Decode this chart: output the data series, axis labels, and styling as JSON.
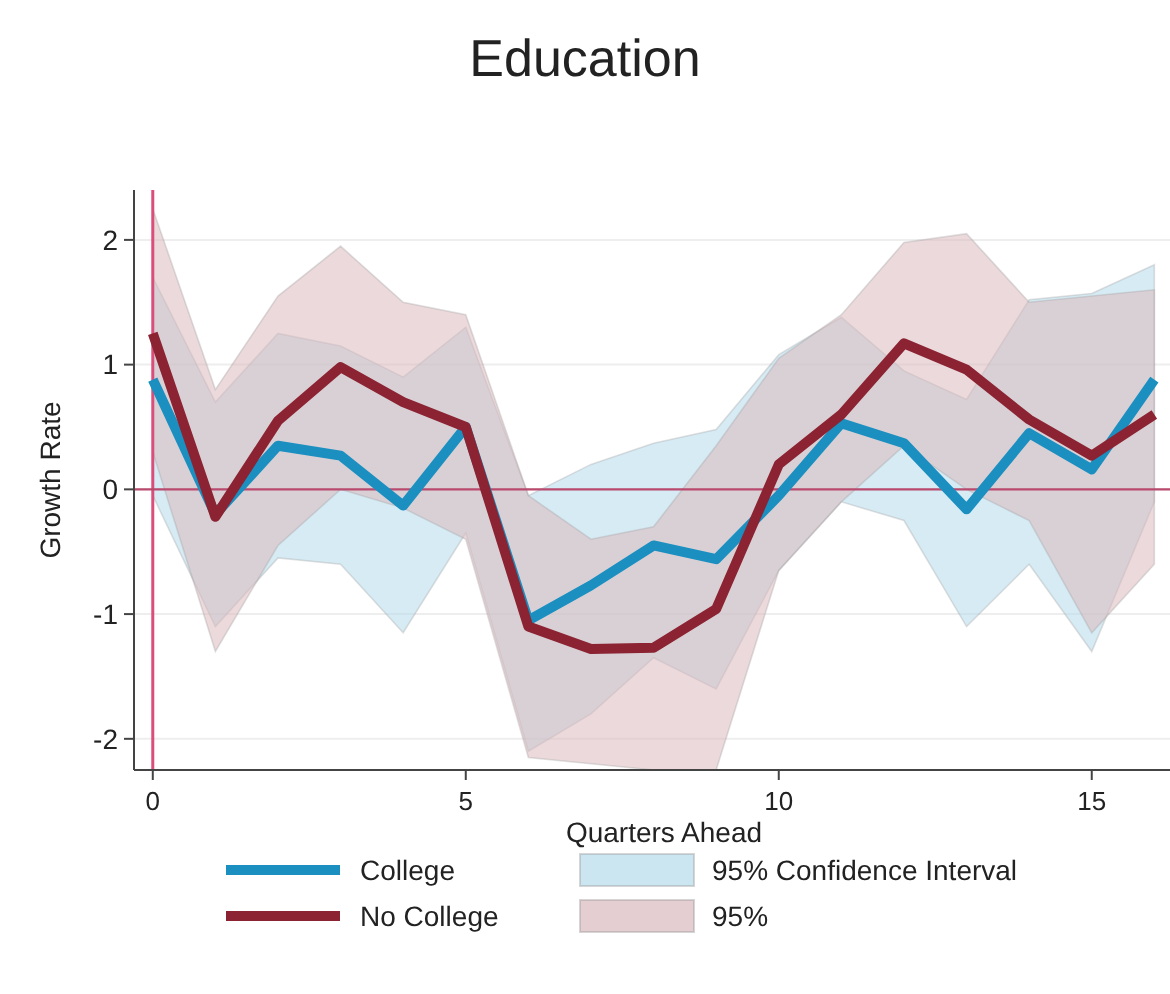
{
  "chart_data": {
    "type": "line",
    "title": "Education",
    "xlabel": "Quarters Ahead",
    "ylabel": "Growth Rate",
    "x": [
      0,
      1,
      2,
      3,
      4,
      5,
      6,
      7,
      8,
      9,
      10,
      11,
      12,
      13,
      14,
      15,
      16
    ],
    "series": [
      {
        "name": "College",
        "color": "#1a8fc0",
        "values": [
          0.88,
          -0.2,
          0.35,
          0.27,
          -0.13,
          0.5,
          -1.05,
          -0.77,
          -0.45,
          -0.56,
          -0.05,
          0.53,
          0.37,
          -0.16,
          0.45,
          0.16,
          0.88
        ],
        "lower": [
          -0.05,
          -1.1,
          -0.55,
          -0.6,
          -1.15,
          -0.35,
          -2.1,
          -1.8,
          -1.35,
          -1.6,
          -0.65,
          -0.1,
          -0.25,
          -1.1,
          -0.6,
          -1.3,
          -0.1
        ],
        "upper": [
          1.7,
          0.7,
          1.25,
          1.15,
          0.9,
          1.3,
          -0.05,
          0.2,
          0.37,
          0.48,
          1.08,
          1.38,
          0.95,
          0.72,
          1.52,
          1.57,
          1.8
        ]
      },
      {
        "name": "No College",
        "color": "#8b2332",
        "values": [
          1.25,
          -0.22,
          0.55,
          0.98,
          0.7,
          0.5,
          -1.1,
          -1.28,
          -1.27,
          -0.96,
          0.2,
          0.6,
          1.17,
          0.96,
          0.56,
          0.27,
          0.6
        ],
        "lower": [
          0.3,
          -1.3,
          -0.45,
          0.0,
          -0.15,
          -0.4,
          -2.15,
          -2.2,
          -2.25,
          -2.25,
          -0.65,
          -0.1,
          0.35,
          0.0,
          -0.25,
          -1.15,
          -0.6
        ],
        "upper": [
          2.25,
          0.8,
          1.55,
          1.95,
          1.5,
          1.4,
          -0.05,
          -0.4,
          -0.3,
          0.35,
          1.05,
          1.4,
          1.98,
          2.05,
          1.5,
          1.55,
          1.6
        ]
      }
    ],
    "annotations": [
      "95% Confidence Interval",
      "95%"
    ],
    "xlim": [
      -0.3,
      16.25
    ],
    "ylim": [
      -2.25,
      2.4
    ],
    "xticks": [
      0,
      5,
      10,
      15
    ],
    "yticks": [
      -2,
      -1,
      0,
      1,
      2
    ],
    "ref_lines": [
      {
        "axis": "x",
        "value": 0,
        "color": "#d94f7a"
      },
      {
        "axis": "y",
        "value": 0,
        "color": "#b94a6e"
      }
    ],
    "grid": "y",
    "legend": "bottom",
    "line_style": "solid",
    "marker": "none"
  }
}
